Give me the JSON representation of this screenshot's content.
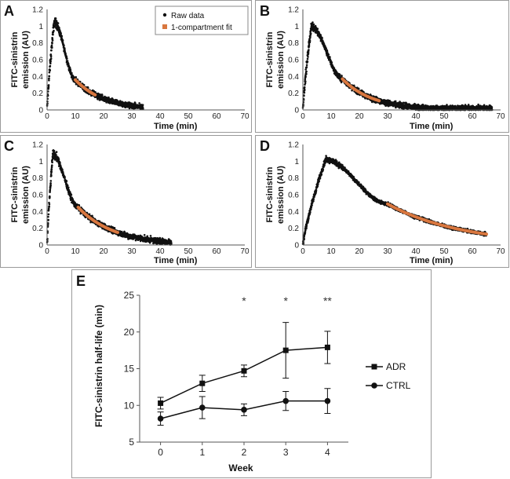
{
  "colors": {
    "raw": "#111111",
    "fit": "#d9773f",
    "frame": "#9a9a9a",
    "line": "#111111"
  },
  "legend": {
    "raw_label": "Raw data",
    "fit_label": "1-compartment fit"
  },
  "chart_data": [
    {
      "type": "scatter",
      "panel": "A",
      "xlabel": "Time (min)",
      "ylabel": "FITC-sinistrin emission (AU)",
      "xlim": [
        0,
        70
      ],
      "ylim": [
        0,
        1.2
      ],
      "xticks": [
        0,
        10,
        20,
        30,
        40,
        50,
        60,
        70
      ],
      "yticks": [
        0,
        0.2,
        0.4,
        0.6,
        0.8,
        1,
        1.2
      ],
      "raw_profile": {
        "peak_time": 2.5,
        "peak_value": 1.05,
        "t_end": 34,
        "tail_value": 0.01,
        "noise": 0.05
      },
      "fit": {
        "x_start": 10,
        "x_end": 17,
        "y_start": 0.36,
        "y_end": 0.18
      },
      "legend_position": "top-right"
    },
    {
      "type": "scatter",
      "panel": "B",
      "xlabel": "Time (min)",
      "ylabel": "FITC-sinistrin emission (AU)",
      "xlim": [
        0,
        70
      ],
      "ylim": [
        0,
        1.2
      ],
      "xticks": [
        0,
        10,
        20,
        30,
        40,
        50,
        60,
        70
      ],
      "yticks": [
        0,
        0.2,
        0.4,
        0.6,
        0.8,
        1,
        1.2
      ],
      "raw_profile": {
        "peak_time": 3,
        "peak_value": 1.0,
        "t_end": 67,
        "tail_value": 0.02,
        "noise": 0.05
      },
      "fit": {
        "x_start": 14,
        "x_end": 27,
        "y_start": 0.37,
        "y_end": 0.11
      }
    },
    {
      "type": "scatter",
      "panel": "C",
      "xlabel": "Time (min)",
      "ylabel": "FITC-sinistrin emission (AU)",
      "xlim": [
        0,
        70
      ],
      "ylim": [
        0,
        1.2
      ],
      "xticks": [
        0,
        10,
        20,
        30,
        40,
        50,
        60,
        70
      ],
      "yticks": [
        0,
        0.2,
        0.4,
        0.6,
        0.8,
        1,
        1.2
      ],
      "raw_profile": {
        "peak_time": 2,
        "peak_value": 1.08,
        "t_end": 44,
        "tail_value": 0.01,
        "noise": 0.05
      },
      "fit": {
        "x_start": 11,
        "x_end": 25,
        "y_start": 0.45,
        "y_end": 0.15
      }
    },
    {
      "type": "scatter",
      "panel": "D",
      "xlabel": "Time (min)",
      "ylabel": "FITC-sinistrin emission (AU)",
      "xlim": [
        0,
        70
      ],
      "ylim": [
        0,
        1.2
      ],
      "xticks": [
        0,
        10,
        20,
        30,
        40,
        50,
        60,
        70
      ],
      "yticks": [
        0,
        0.2,
        0.4,
        0.6,
        0.8,
        1,
        1.2
      ],
      "raw_profile": {
        "peak_time": 8,
        "peak_value": 1.02,
        "t_end": 65,
        "tail_value": 0.13,
        "noise": 0.03
      },
      "fit": {
        "x_start": 30,
        "x_end": 65,
        "y_start": 0.49,
        "y_end": 0.13
      }
    },
    {
      "type": "line",
      "panel": "E",
      "xlabel": "Week",
      "ylabel": "FITC-sinistrin half-life (min)",
      "xlim": [
        -0.5,
        4.5
      ],
      "ylim": [
        5,
        25
      ],
      "x": [
        0,
        1,
        2,
        3,
        4
      ],
      "yticks": [
        5,
        10,
        15,
        20,
        25
      ],
      "series": [
        {
          "name": "ADR",
          "marker": "square",
          "values": [
            10.3,
            13.0,
            14.7,
            17.5,
            17.9
          ],
          "error": [
            0.8,
            1.1,
            0.8,
            3.8,
            2.2
          ]
        },
        {
          "name": "CTRL",
          "marker": "circle",
          "values": [
            8.2,
            9.7,
            9.4,
            10.6,
            10.6
          ],
          "error": [
            0.9,
            1.5,
            0.8,
            1.3,
            1.7
          ]
        }
      ],
      "annotations": [
        {
          "x": 2,
          "text": "*"
        },
        {
          "x": 3,
          "text": "*"
        },
        {
          "x": 4,
          "text": "**"
        }
      ],
      "legend_position": "right"
    }
  ]
}
